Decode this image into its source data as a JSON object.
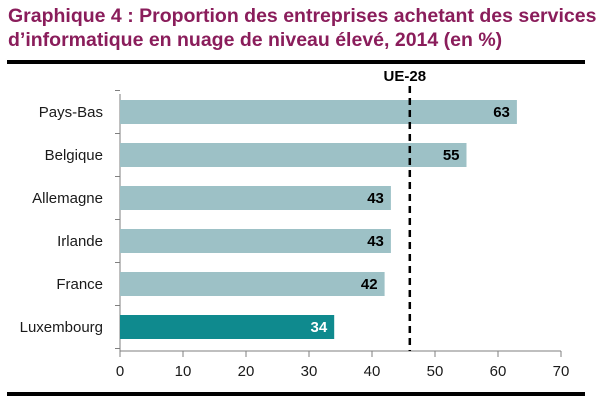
{
  "header": {
    "title": "Graphique 4 : Proportion des entreprises achetant des services d’informatique en nuage de niveau élevé, 2014 (en %)"
  },
  "colors": {
    "title": "#8a1d5b",
    "bar_default": "#9dc1c6",
    "bar_highlight": "#0f8a8e",
    "label_default": "#000000",
    "label_highlight": "#ffffff"
  },
  "chart_data": {
    "type": "bar",
    "orientation": "horizontal",
    "title": "Graphique 4 : Proportion des entreprises achetant des services d’informatique en nuage de niveau élevé, 2014 (en %)",
    "categories": [
      "Pays-Bas",
      "Belgique",
      "Allemagne",
      "Irlande",
      "France",
      "Luxembourg"
    ],
    "values": [
      63,
      55,
      43,
      43,
      42,
      34
    ],
    "highlight": "Luxembourg",
    "xlim": [
      0,
      70
    ],
    "xticks": [
      0,
      10,
      20,
      30,
      40,
      50,
      60,
      70
    ],
    "grid": false,
    "legend": "none",
    "reference_line": {
      "label": "UE-28",
      "value": 46,
      "style": "dashed"
    }
  }
}
